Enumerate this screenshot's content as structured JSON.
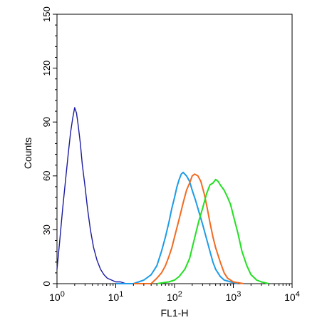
{
  "chart_data": {
    "type": "line",
    "title": "",
    "xlabel": "FL1-H",
    "ylabel": "Counts",
    "x_scale": "log",
    "xlim": [
      1,
      10000
    ],
    "ylim": [
      0,
      150
    ],
    "x_ticks": [
      {
        "value": 1,
        "base": "10",
        "exp": "0"
      },
      {
        "value": 10,
        "base": "10",
        "exp": "1"
      },
      {
        "value": 100,
        "base": "10",
        "exp": "2"
      },
      {
        "value": 1000,
        "base": "10",
        "exp": "3"
      },
      {
        "value": 10000,
        "base": "10",
        "exp": "4"
      }
    ],
    "y_ticks": [
      0,
      30,
      60,
      90,
      120,
      150
    ],
    "grid": false,
    "legend": "none",
    "series": [
      {
        "color": "#1a1aa0",
        "x": [
          1.0,
          1.1,
          1.25,
          1.4,
          1.55,
          1.7,
          1.85,
          2.0,
          2.15,
          2.3,
          2.5,
          2.7,
          3.0,
          3.3,
          3.7,
          4.2,
          4.8,
          5.5,
          6.3,
          7.2,
          8.5,
          10,
          12,
          15,
          20,
          30
        ],
        "y": [
          8,
          22,
          42,
          58,
          72,
          84,
          92,
          98,
          95,
          88,
          78,
          66,
          54,
          42,
          30,
          20,
          13,
          8,
          5,
          3,
          2,
          1,
          1,
          0,
          0,
          0
        ]
      },
      {
        "color": "#1e9be6",
        "x": [
          10,
          20,
          30,
          40,
          50,
          60,
          70,
          80,
          90,
          100,
          110,
          120,
          130,
          140,
          160,
          180,
          200,
          230,
          260,
          300,
          350,
          400,
          450,
          500,
          600,
          700,
          900,
          1200
        ],
        "y": [
          0,
          0,
          2,
          5,
          10,
          18,
          26,
          34,
          42,
          48,
          54,
          58,
          61,
          62,
          60,
          57,
          52,
          46,
          40,
          33,
          25,
          18,
          12,
          8,
          4,
          2,
          1,
          0
        ]
      },
      {
        "color": "#f26b21",
        "x": [
          20,
          40,
          50,
          60,
          70,
          80,
          90,
          100,
          120,
          140,
          160,
          180,
          200,
          220,
          250,
          280,
          320,
          360,
          400,
          450,
          500,
          600,
          700,
          800,
          1000,
          1500
        ],
        "y": [
          0,
          0,
          3,
          6,
          10,
          15,
          20,
          26,
          36,
          45,
          52,
          56,
          60,
          61,
          60,
          57,
          50,
          42,
          34,
          26,
          20,
          12,
          6,
          3,
          1,
          0
        ]
      },
      {
        "color": "#22e022",
        "x": [
          50,
          80,
          100,
          120,
          150,
          180,
          200,
          230,
          260,
          300,
          350,
          400,
          450,
          500,
          550,
          600,
          700,
          800,
          900,
          1000,
          1200,
          1400,
          1700,
          2000,
          2500,
          3000,
          4000
        ],
        "y": [
          0,
          1,
          2,
          4,
          8,
          14,
          20,
          28,
          35,
          42,
          50,
          55,
          56,
          58,
          57,
          55,
          52,
          48,
          44,
          38,
          28,
          18,
          10,
          5,
          2,
          1,
          0
        ]
      }
    ]
  }
}
